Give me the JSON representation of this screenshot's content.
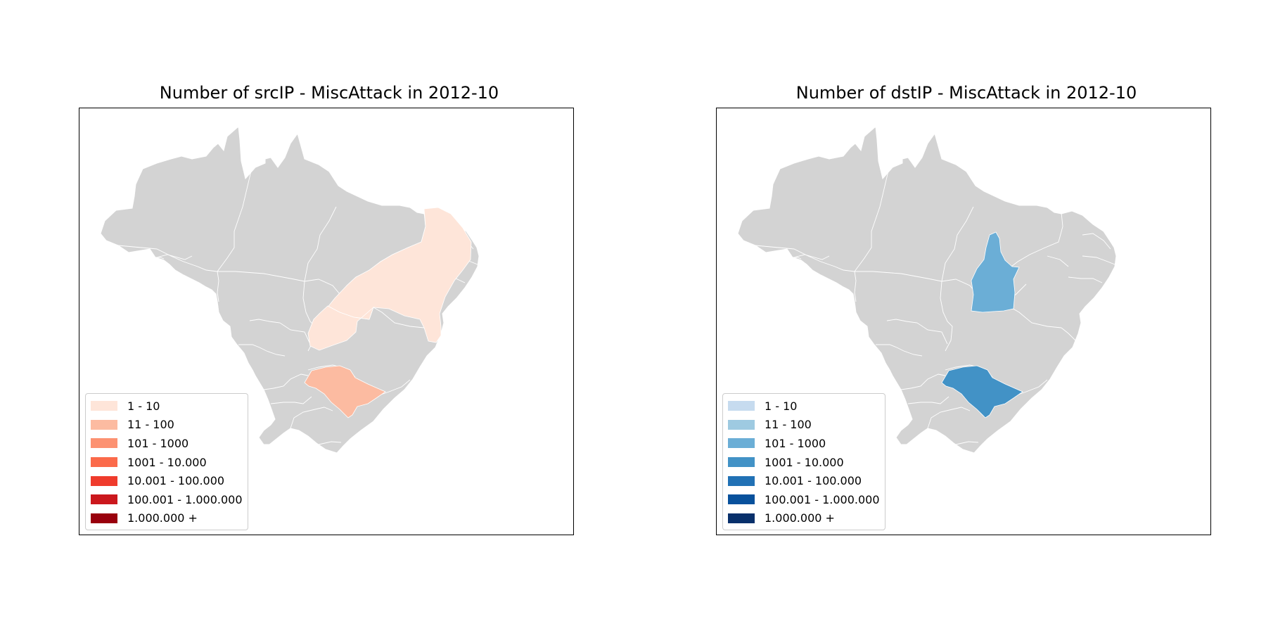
{
  "maps": [
    {
      "title": "Number of srcIP - MiscAttack in 2012-10",
      "legend": [
        {
          "label": "1 - 10",
          "color": "#fee5d9"
        },
        {
          "label": "11 - 100",
          "color": "#fcbba1"
        },
        {
          "label": "101 - 1000",
          "color": "#fc9272"
        },
        {
          "label": "1001 - 10.000",
          "color": "#fb6a4a"
        },
        {
          "label": "10.001 - 100.000",
          "color": "#ef3b2c"
        },
        {
          "label": "100.001 - 1.000.000",
          "color": "#cb181d"
        },
        {
          "label": "1.000.000 +",
          "color": "#99000d"
        }
      ],
      "shaded_regions": [
        {
          "region": "northeast-interior",
          "bin": "1 - 10",
          "color": "#fee5d9"
        },
        {
          "region": "goias",
          "bin": "1 - 10",
          "color": "#fee5d9"
        },
        {
          "region": "sao-paulo",
          "bin": "11 - 100",
          "color": "#fcbba1"
        }
      ]
    },
    {
      "title": "Number of dstIP - MiscAttack in 2012-10",
      "legend": [
        {
          "label": "1 - 10",
          "color": "#c6dbef"
        },
        {
          "label": "11 - 100",
          "color": "#9ecae1"
        },
        {
          "label": "101 - 1000",
          "color": "#6baed6"
        },
        {
          "label": "1001 - 10.000",
          "color": "#4292c6"
        },
        {
          "label": "10.001 - 100.000",
          "color": "#2171b5"
        },
        {
          "label": "100.001 - 1.000.000",
          "color": "#08519c"
        },
        {
          "label": "1.000.000 +",
          "color": "#08306b"
        }
      ],
      "shaded_regions": [
        {
          "region": "tocantins",
          "bin": "101 - 1000",
          "color": "#6baed6"
        },
        {
          "region": "sao-paulo",
          "bin": "1001 - 10.000",
          "color": "#4292c6"
        }
      ]
    }
  ],
  "base_color": "#d3d3d3"
}
